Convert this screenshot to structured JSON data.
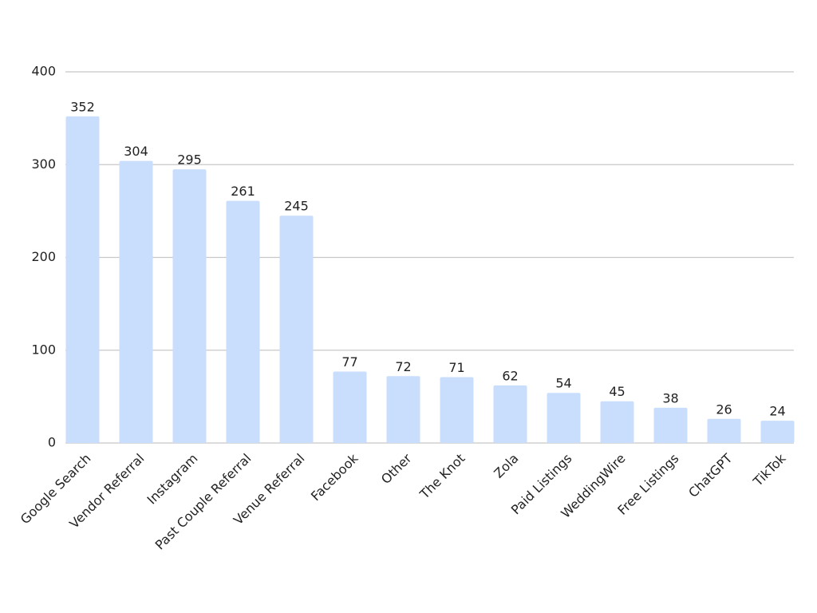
{
  "chart_data": {
    "type": "bar",
    "categories": [
      "Google Search",
      "Vendor Referral",
      "Instagram",
      "Past Couple Referral",
      "Venue Referral",
      "Facebook",
      "Other",
      "The Knot",
      "Zola",
      "Paid Listings",
      "WeddingWire",
      "Free Listings",
      "ChatGPT",
      "TikTok"
    ],
    "values": [
      352,
      304,
      295,
      261,
      245,
      77,
      72,
      71,
      62,
      54,
      45,
      38,
      26,
      24
    ],
    "color": "#c9ddfc",
    "ylim": [
      0,
      400
    ],
    "yticks": [
      0,
      100,
      200,
      300,
      400
    ],
    "grid": true
  }
}
